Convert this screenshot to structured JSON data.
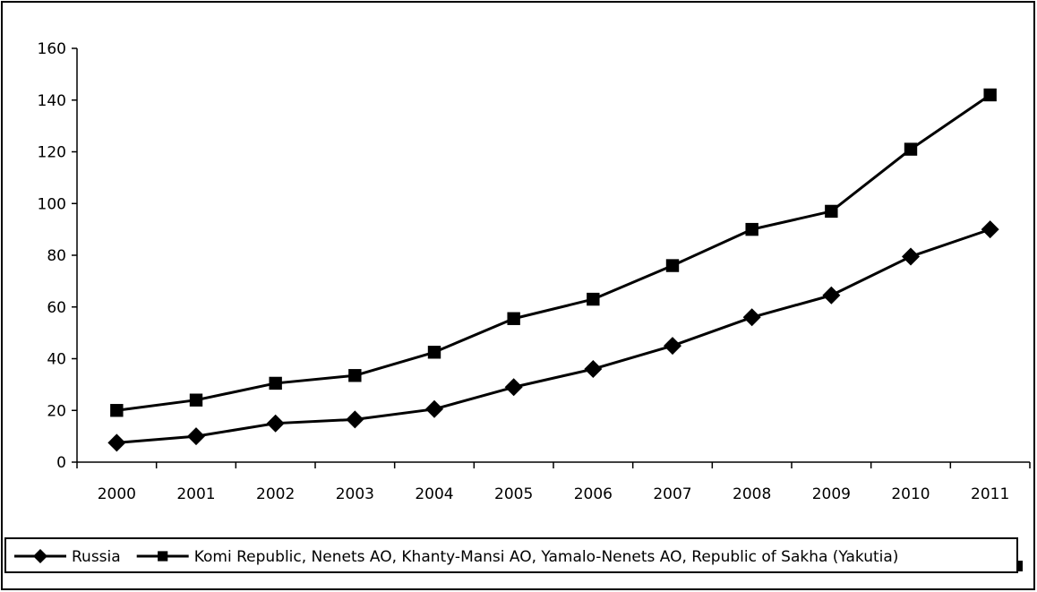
{
  "chart_data": {
    "type": "line",
    "title": "",
    "xlabel": "",
    "ylabel": "",
    "categories": [
      "2000",
      "2001",
      "2002",
      "2003",
      "2004",
      "2005",
      "2006",
      "2007",
      "2008",
      "2009",
      "2010",
      "2011"
    ],
    "series": [
      {
        "name": "Russia",
        "marker": "diamond",
        "values": [
          7.5,
          10,
          15,
          16.5,
          20.5,
          29,
          36,
          45,
          56,
          64.5,
          79.5,
          90
        ]
      },
      {
        "name": "Komi Republic, Nenets AO, Khanty-Mansi AO, Yamalo-Nenets AO, Republic of Sakha (Yakutia)",
        "marker": "square",
        "values": [
          20,
          24,
          30.5,
          33.5,
          42.5,
          55.5,
          63,
          76,
          90,
          97,
          121,
          142
        ]
      }
    ],
    "ylim": [
      0,
      160
    ],
    "yticks": [
      "0",
      "20",
      "40",
      "60",
      "80",
      "100",
      "120",
      "140",
      "160"
    ],
    "grid": false,
    "legend": "bottom",
    "line_color": "#000000"
  }
}
